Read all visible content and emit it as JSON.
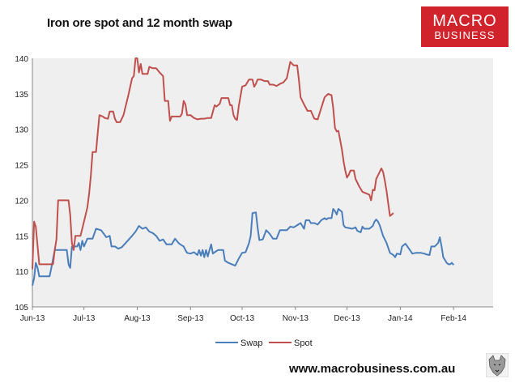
{
  "chart_data": {
    "type": "line",
    "title": "Iron ore spot and 12 month swap",
    "xlabel": "",
    "ylabel": "",
    "ylim": [
      105,
      140
    ],
    "yticks": [
      105,
      110,
      115,
      120,
      125,
      130,
      135,
      140
    ],
    "xlim": [
      0,
      268
    ],
    "x_ticks": [
      {
        "label": "Jun-13",
        "x": 0
      },
      {
        "label": "Jul-13",
        "x": 30
      },
      {
        "label": "Aug-13",
        "x": 61
      },
      {
        "label": "Sep-13",
        "x": 92
      },
      {
        "label": "Oct-13",
        "x": 122
      },
      {
        "label": "Nov-13",
        "x": 153
      },
      {
        "label": "Dec-13",
        "x": 183
      },
      {
        "label": "Jan-14",
        "x": 214
      },
      {
        "label": "Feb-14",
        "x": 245
      }
    ],
    "legend_position": "bottom",
    "grid": false,
    "series": [
      {
        "name": "Swap",
        "color": "#4a7ebb",
        "points": [
          [
            0,
            108
          ],
          [
            1,
            109
          ],
          [
            2,
            111.2
          ],
          [
            3,
            110.5
          ],
          [
            4,
            109.3
          ],
          [
            10,
            109.3
          ],
          [
            11,
            110.5
          ],
          [
            13,
            113
          ],
          [
            20,
            113
          ],
          [
            21,
            111
          ],
          [
            22,
            110.5
          ],
          [
            23,
            113.5
          ],
          [
            26,
            113.5
          ],
          [
            27,
            114
          ],
          [
            28,
            113
          ],
          [
            29,
            114.3
          ],
          [
            30,
            113.5
          ],
          [
            32,
            114.6
          ],
          [
            35,
            114.6
          ],
          [
            37,
            116
          ],
          [
            40,
            115.8
          ],
          [
            43,
            114.8
          ],
          [
            45,
            115
          ],
          [
            46,
            113.5
          ],
          [
            48,
            113.5
          ],
          [
            50,
            113.2
          ],
          [
            52,
            113.4
          ],
          [
            55,
            114.2
          ],
          [
            58,
            115
          ],
          [
            60,
            115.6
          ],
          [
            62,
            116.4
          ],
          [
            64,
            116
          ],
          [
            66,
            116.2
          ],
          [
            68,
            115.6
          ],
          [
            70,
            115.4
          ],
          [
            72,
            115
          ],
          [
            74,
            114.3
          ],
          [
            76,
            114.5
          ],
          [
            78,
            113.8
          ],
          [
            81,
            113.8
          ],
          [
            83,
            114.6
          ],
          [
            85,
            114
          ],
          [
            86,
            113.8
          ],
          [
            88,
            113.5
          ],
          [
            89,
            113
          ],
          [
            90,
            112.6
          ],
          [
            92,
            112.5
          ],
          [
            94,
            112.7
          ],
          [
            96,
            112.3
          ],
          [
            97,
            113
          ],
          [
            98,
            112.2
          ],
          [
            99,
            113
          ],
          [
            100,
            112
          ],
          [
            101,
            113
          ],
          [
            102,
            112.1
          ],
          [
            103,
            113
          ],
          [
            104,
            113.8
          ],
          [
            105,
            112.5
          ],
          [
            106,
            112.7
          ],
          [
            108,
            113
          ],
          [
            111,
            113
          ],
          [
            112,
            111.5
          ],
          [
            114,
            111.2
          ],
          [
            116,
            111
          ],
          [
            118,
            110.8
          ],
          [
            120,
            111.8
          ],
          [
            122,
            112.6
          ],
          [
            124,
            112.7
          ],
          [
            126,
            114
          ],
          [
            127,
            115
          ],
          [
            128,
            118.2
          ],
          [
            130,
            118.3
          ],
          [
            131,
            116.2
          ],
          [
            132,
            114.4
          ],
          [
            134,
            114.5
          ],
          [
            136,
            115.8
          ],
          [
            138,
            115.3
          ],
          [
            140,
            114.6
          ],
          [
            142,
            114.6
          ],
          [
            144,
            115.8
          ],
          [
            148,
            115.8
          ],
          [
            150,
            116.3
          ],
          [
            152,
            116.2
          ],
          [
            154,
            116.5
          ],
          [
            156,
            116.8
          ],
          [
            158,
            116
          ],
          [
            159,
            117.2
          ],
          [
            161,
            117.2
          ],
          [
            162,
            116.8
          ],
          [
            164,
            116.8
          ],
          [
            166,
            116.6
          ],
          [
            168,
            117.2
          ],
          [
            170,
            117.5
          ],
          [
            171,
            117.3
          ],
          [
            172,
            117.5
          ],
          [
            174,
            117.5
          ],
          [
            175,
            118.8
          ],
          [
            176,
            118.5
          ],
          [
            177,
            118
          ],
          [
            178,
            118.8
          ],
          [
            180,
            118.4
          ],
          [
            181,
            116.5
          ],
          [
            182,
            116.2
          ],
          [
            184,
            116.1
          ],
          [
            186,
            116
          ],
          [
            188,
            116.2
          ],
          [
            189,
            115.7
          ],
          [
            191,
            115.5
          ],
          [
            192,
            116.3
          ],
          [
            193,
            116
          ],
          [
            196,
            116
          ],
          [
            198,
            116.4
          ],
          [
            199,
            117
          ],
          [
            200,
            117.3
          ],
          [
            201,
            117
          ],
          [
            202,
            116.5
          ],
          [
            204,
            115
          ],
          [
            206,
            114
          ],
          [
            208,
            112.6
          ],
          [
            210,
            112.3
          ],
          [
            211,
            112
          ],
          [
            212,
            112.5
          ],
          [
            214,
            112.4
          ],
          [
            215,
            113.5
          ],
          [
            217,
            113.9
          ],
          [
            219,
            113.2
          ],
          [
            221,
            112.5
          ],
          [
            223,
            112.6
          ],
          [
            226,
            112.6
          ],
          [
            228,
            112.5
          ],
          [
            229,
            112.4
          ],
          [
            231,
            112.3
          ],
          [
            232,
            113.5
          ],
          [
            234,
            113.5
          ],
          [
            236,
            114
          ],
          [
            237,
            114.8
          ],
          [
            238,
            113.5
          ],
          [
            239,
            112
          ],
          [
            241,
            111.2
          ],
          [
            242,
            111
          ],
          [
            243,
            111
          ],
          [
            244,
            111.2
          ],
          [
            245,
            110.9
          ]
        ]
      },
      {
        "name": "Spot",
        "color": "#c0504d",
        "points": [
          [
            0,
            110.3
          ],
          [
            1,
            117
          ],
          [
            2,
            116.3
          ],
          [
            4,
            111
          ],
          [
            12,
            111
          ],
          [
            13,
            113
          ],
          [
            14,
            114.5
          ],
          [
            15,
            120
          ],
          [
            21,
            120
          ],
          [
            22,
            118
          ],
          [
            23,
            114
          ],
          [
            24,
            113
          ],
          [
            25,
            115
          ],
          [
            28,
            115
          ],
          [
            29,
            116
          ],
          [
            30,
            117
          ],
          [
            31,
            118
          ],
          [
            32,
            119
          ],
          [
            33,
            121
          ],
          [
            34,
            123.5
          ],
          [
            35,
            126.8
          ],
          [
            37,
            126.8
          ],
          [
            38,
            129.5
          ],
          [
            39,
            132
          ],
          [
            41,
            131.8
          ],
          [
            42,
            131.6
          ],
          [
            44,
            131.5
          ],
          [
            45,
            132.5
          ],
          [
            47,
            132.5
          ],
          [
            48,
            131.5
          ],
          [
            49,
            131
          ],
          [
            51,
            131
          ],
          [
            53,
            132
          ],
          [
            56,
            135
          ],
          [
            58,
            137.2
          ],
          [
            59,
            137.5
          ],
          [
            60,
            140
          ],
          [
            61,
            140
          ],
          [
            62,
            138
          ],
          [
            63,
            139.2
          ],
          [
            64,
            137.8
          ],
          [
            67,
            137.8
          ],
          [
            68,
            138.8
          ],
          [
            70,
            138.6
          ],
          [
            72,
            138.6
          ],
          [
            74,
            138
          ],
          [
            76,
            137.5
          ],
          [
            77,
            134
          ],
          [
            79,
            134
          ],
          [
            80,
            131.2
          ],
          [
            81,
            131.8
          ],
          [
            86,
            131.8
          ],
          [
            87,
            132.2
          ],
          [
            88,
            134
          ],
          [
            89,
            133.5
          ],
          [
            90,
            132
          ],
          [
            92,
            132
          ],
          [
            94,
            131.6
          ],
          [
            96,
            131.4
          ],
          [
            98,
            131.5
          ],
          [
            100,
            131.5
          ],
          [
            102,
            131.6
          ],
          [
            104,
            131.6
          ],
          [
            106,
            133.4
          ],
          [
            107,
            133.2
          ],
          [
            109,
            133.6
          ],
          [
            110,
            134.4
          ],
          [
            114,
            134.4
          ],
          [
            115,
            133.4
          ],
          [
            116,
            133.4
          ],
          [
            117,
            132
          ],
          [
            118,
            131.5
          ],
          [
            119,
            131.3
          ],
          [
            120,
            133.2
          ],
          [
            122,
            136
          ],
          [
            124,
            136.2
          ],
          [
            126,
            137
          ],
          [
            128,
            137
          ],
          [
            129,
            136
          ],
          [
            130,
            136.4
          ],
          [
            131,
            137
          ],
          [
            133,
            137
          ],
          [
            135,
            136.8
          ],
          [
            137,
            136.8
          ],
          [
            138,
            136.3
          ],
          [
            140,
            136.3
          ],
          [
            142,
            136.1
          ],
          [
            144,
            136.4
          ],
          [
            146,
            136.6
          ],
          [
            148,
            137.2
          ],
          [
            150,
            139.5
          ],
          [
            152,
            139
          ],
          [
            154,
            139
          ],
          [
            155,
            137
          ],
          [
            156,
            134.5
          ],
          [
            158,
            133.5
          ],
          [
            160,
            132.6
          ],
          [
            162,
            132.6
          ],
          [
            164,
            131.5
          ],
          [
            166,
            131.4
          ],
          [
            168,
            133
          ],
          [
            170,
            134.5
          ],
          [
            172,
            135
          ],
          [
            174,
            134.8
          ],
          [
            175,
            133
          ],
          [
            176,
            130.2
          ],
          [
            177,
            129.7
          ],
          [
            178,
            129.8
          ],
          [
            180,
            127.2
          ],
          [
            181,
            125.5
          ],
          [
            182,
            124.2
          ],
          [
            183,
            123.2
          ],
          [
            184,
            123.6
          ],
          [
            185,
            124.2
          ],
          [
            187,
            124.2
          ],
          [
            188,
            123
          ],
          [
            189,
            122.5
          ],
          [
            190,
            122
          ],
          [
            192,
            121.2
          ],
          [
            194,
            121
          ],
          [
            196,
            120.8
          ],
          [
            197,
            120
          ],
          [
            198,
            121.5
          ],
          [
            199,
            121.4
          ],
          [
            200,
            123
          ],
          [
            202,
            124
          ],
          [
            203,
            124.5
          ],
          [
            204,
            124
          ],
          [
            205,
            122.8
          ],
          [
            206,
            121.3
          ],
          [
            207,
            119.5
          ],
          [
            208,
            117.8
          ],
          [
            209,
            118
          ],
          [
            210,
            118.2
          ]
        ]
      }
    ]
  },
  "brand": {
    "line1": "MACRO",
    "line2": "BUSINESS"
  },
  "footer": {
    "url": "www.macrobusiness.com.au"
  }
}
